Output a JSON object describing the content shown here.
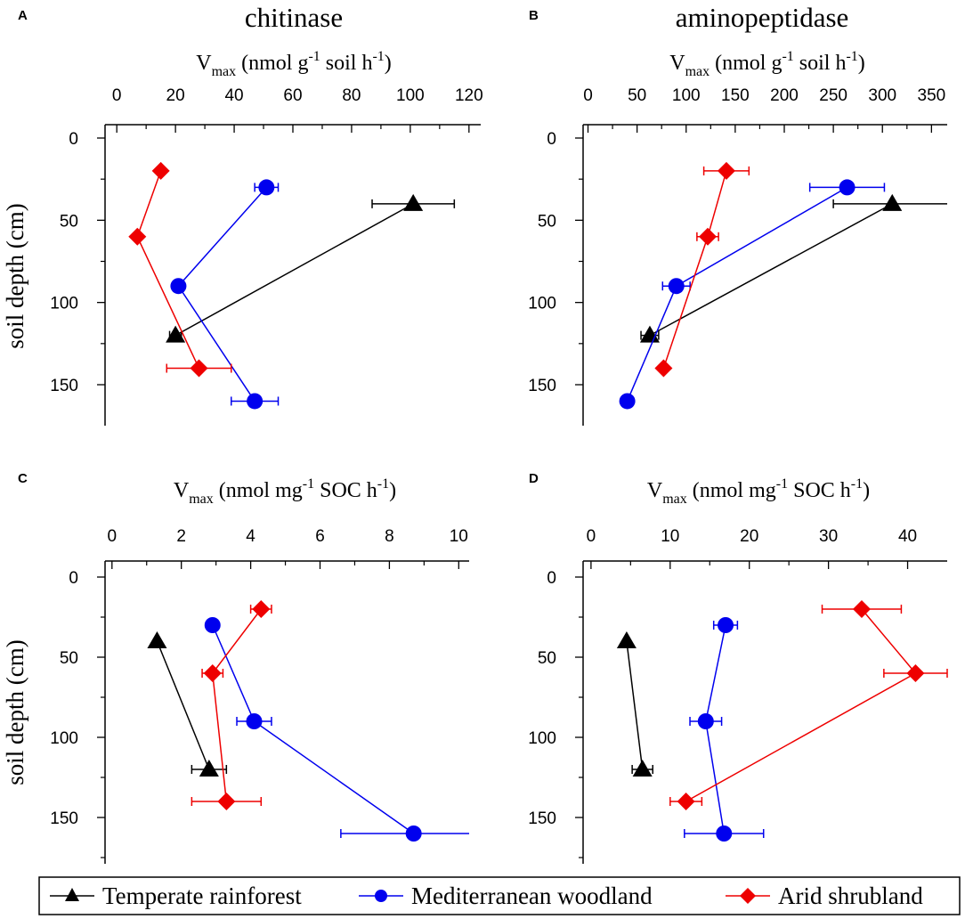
{
  "chart_data": [
    {
      "type": "line",
      "panel": "A",
      "title": "chitinase",
      "xlabel": {
        "main": "V",
        "sub": "max",
        "pre": " (nmol g",
        "sup": "-1",
        "post": " soil h",
        "sup2": "-1",
        "end": ")"
      },
      "ylabel": "soil depth (cm)",
      "xlim": [
        -4,
        124
      ],
      "ylim": [
        0,
        175
      ],
      "xticks": [
        0,
        20,
        40,
        60,
        80,
        100,
        120
      ],
      "yticks": [
        0,
        50,
        100,
        150
      ],
      "series": [
        {
          "name": "Temperate rainforest",
          "color": "#000000",
          "marker": "triangle",
          "depth": [
            40,
            120
          ],
          "x": [
            101,
            20
          ],
          "xerr": [
            14,
            2
          ]
        },
        {
          "name": "Mediterranean woodland",
          "color": "#0000ee",
          "marker": "circle",
          "depth": [
            30,
            90,
            160
          ],
          "x": [
            51,
            21,
            47
          ],
          "xerr": [
            4,
            0,
            8
          ]
        },
        {
          "name": "Arid shrubland",
          "color": "#ee0000",
          "marker": "diamond",
          "depth": [
            20,
            60,
            140
          ],
          "x": [
            15,
            7,
            28
          ],
          "xerr": [
            0,
            0,
            11
          ]
        }
      ]
    },
    {
      "type": "line",
      "panel": "B",
      "title": "aminopeptidase",
      "xlabel": {
        "main": "V",
        "sub": "max",
        "pre": " (nmol g",
        "sup": "-1",
        "post": " soil h",
        "sup2": "-1",
        "end": ")"
      },
      "ylabel": "",
      "xlim": [
        -5,
        366
      ],
      "ylim": [
        0,
        175
      ],
      "xticks": [
        0,
        50,
        100,
        150,
        200,
        250,
        300,
        350
      ],
      "yticks": [
        0,
        50,
        100,
        150
      ],
      "series": [
        {
          "name": "Temperate rainforest",
          "color": "#000000",
          "marker": "triangle",
          "depth": [
            40,
            120
          ],
          "x": [
            310,
            63
          ],
          "xerr": [
            60,
            9
          ]
        },
        {
          "name": "Mediterranean woodland",
          "color": "#0000ee",
          "marker": "circle",
          "depth": [
            30,
            90,
            160
          ],
          "x": [
            264,
            90,
            40
          ],
          "xerr": [
            38,
            14,
            0
          ]
        },
        {
          "name": "Arid shrubland",
          "color": "#ee0000",
          "marker": "diamond",
          "depth": [
            20,
            60,
            140
          ],
          "x": [
            141,
            122,
            77
          ],
          "xerr": [
            23,
            11,
            0
          ]
        }
      ]
    },
    {
      "type": "line",
      "panel": "C",
      "title": "",
      "xlabel": {
        "main": "V",
        "sub": "max",
        "pre": " (nmol mg",
        "sup": "-1",
        "post": " SOC h",
        "sup2": "-1",
        "end": ")"
      },
      "ylabel": "soil depth (cm)",
      "xlim": [
        -0.2,
        10.3
      ],
      "ylim": [
        0,
        175
      ],
      "xticks": [
        0,
        2,
        4,
        6,
        8,
        10
      ],
      "yticks": [
        0,
        50,
        100,
        150
      ],
      "series": [
        {
          "name": "Temperate rainforest",
          "color": "#000000",
          "marker": "triangle",
          "depth": [
            40,
            120
          ],
          "x": [
            1.3,
            2.8
          ],
          "xerr": [
            0,
            0.5
          ]
        },
        {
          "name": "Mediterranean woodland",
          "color": "#0000ee",
          "marker": "circle",
          "depth": [
            30,
            90,
            160
          ],
          "x": [
            2.9,
            4.1,
            8.7
          ],
          "xerr": [
            0,
            0.5,
            2.1
          ]
        },
        {
          "name": "Arid shrubland",
          "color": "#ee0000",
          "marker": "diamond",
          "depth": [
            20,
            60,
            140
          ],
          "x": [
            4.3,
            2.9,
            3.3
          ],
          "xerr": [
            0.3,
            0.3,
            1.0
          ]
        }
      ]
    },
    {
      "type": "line",
      "panel": "D",
      "title": "",
      "xlabel": {
        "main": "V",
        "sub": "max",
        "pre": " (nmol mg",
        "sup": "-1",
        "post": " SOC h",
        "sup2": "-1",
        "end": ")"
      },
      "ylabel": "",
      "xlim": [
        -1,
        45
      ],
      "ylim": [
        0,
        175
      ],
      "xticks": [
        0,
        10,
        20,
        30,
        40
      ],
      "yticks": [
        0,
        50,
        100,
        150
      ],
      "series": [
        {
          "name": "Temperate rainforest",
          "color": "#000000",
          "marker": "triangle",
          "depth": [
            40,
            120
          ],
          "x": [
            4.5,
            6.5
          ],
          "xerr": [
            0,
            1.3
          ]
        },
        {
          "name": "Mediterranean woodland",
          "color": "#0000ee",
          "marker": "circle",
          "depth": [
            30,
            90,
            160
          ],
          "x": [
            17,
            14.5,
            16.8
          ],
          "xerr": [
            1.5,
            2.0,
            5.0
          ]
        },
        {
          "name": "Arid shrubland",
          "color": "#ee0000",
          "marker": "diamond",
          "depth": [
            20,
            60,
            140
          ],
          "x": [
            34.2,
            41,
            12
          ],
          "xerr": [
            5.0,
            4.0,
            2.0
          ]
        }
      ]
    }
  ],
  "legend": [
    {
      "label": "Temperate rainforest",
      "color": "#000000",
      "marker": "triangle"
    },
    {
      "label": "Mediterranean woodland",
      "color": "#0000ee",
      "marker": "circle"
    },
    {
      "label": "Arid shrubland",
      "color": "#ee0000",
      "marker": "diamond"
    }
  ]
}
